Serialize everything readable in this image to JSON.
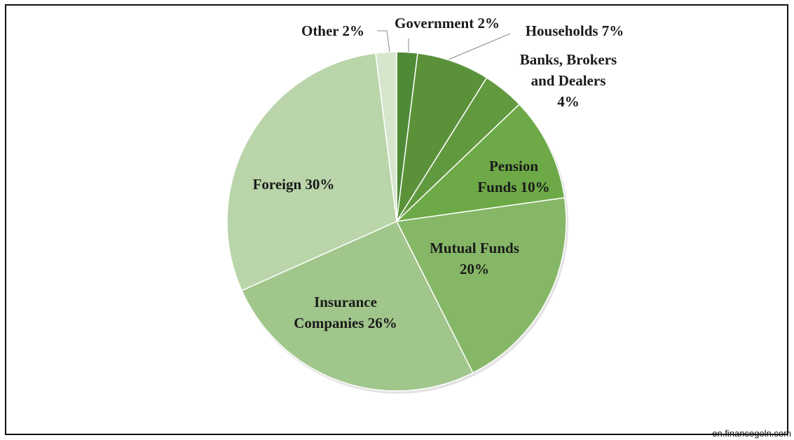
{
  "chart_data": {
    "type": "pie",
    "start_angle_deg": 0,
    "direction": "clockwise",
    "slices": [
      {
        "name": "Government",
        "value": 2,
        "color": "#4f8a37",
        "label_lines": [
          "Government 2%"
        ]
      },
      {
        "name": "Households",
        "value": 7,
        "color": "#5a9139",
        "label_lines": [
          "Households 7%"
        ]
      },
      {
        "name": "Banks, Brokers and Dealers",
        "value": 4,
        "color": "#61993f",
        "label_lines": [
          "Banks, Brokers",
          "and Dealers",
          "4%"
        ]
      },
      {
        "name": "Pension Funds",
        "value": 10,
        "color": "#6daa47",
        "label_lines": [
          "Pension",
          "Funds 10%"
        ]
      },
      {
        "name": "Mutual Funds",
        "value": 20,
        "color": "#86b767",
        "label_lines": [
          "Mutual Funds",
          "20%"
        ]
      },
      {
        "name": "Insurance Companies",
        "value": 26,
        "color": "#a1c68c",
        "label_lines": [
          "Insurance",
          "Companies 26%"
        ]
      },
      {
        "name": "Foreign",
        "value": 30,
        "color": "#b9d5a9",
        "label_lines": [
          "Foreign 30%"
        ]
      },
      {
        "name": "Other",
        "value": 2,
        "color": "#d6e6cd",
        "label_lines": [
          "Other 2%"
        ]
      }
    ]
  },
  "credit": "en.financegoln.com"
}
